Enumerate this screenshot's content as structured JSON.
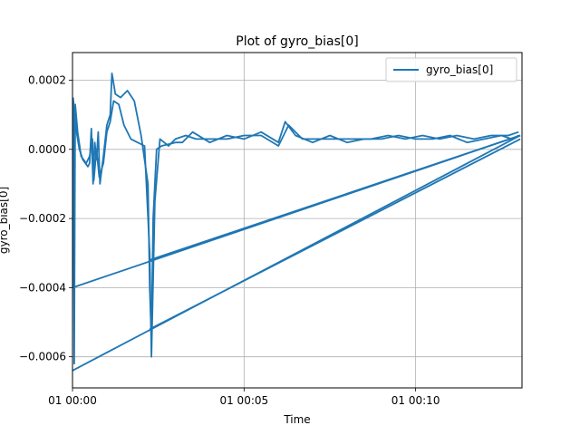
{
  "chart_data": {
    "type": "line",
    "title": "Plot of gyro_bias[0]",
    "xlabel": "Time",
    "ylabel": "gyro_bias[0]",
    "grid": true,
    "legend_position": "top-right",
    "x_unit": "minutes after 00:00",
    "x_tick_values": [
      0,
      5,
      10
    ],
    "x_tick_labels": [
      "01 00:00",
      "01 00:05",
      "01 00:10"
    ],
    "xlim": [
      0,
      13.1
    ],
    "ylim": [
      -0.00069,
      0.00028
    ],
    "y_tick_values": [
      0.0002,
      0.0,
      -0.0002,
      -0.0004,
      -0.0006
    ],
    "y_tick_labels": [
      "0.0002",
      "0.0000",
      "−0.0002",
      "−0.0004",
      "−0.0006"
    ],
    "color": "#1f77b4",
    "series": [
      {
        "name": "gyro_bias[0]",
        "segments": [
          [
            [
              0.02,
              0.00015
            ],
            [
              0.04,
              -0.0004
            ],
            [
              0.06,
              0.00012
            ],
            [
              0.1,
              6e-05
            ],
            [
              0.2,
              0.0
            ],
            [
              0.3,
              -3e-05
            ],
            [
              0.45,
              -5e-05
            ],
            [
              0.5,
              -4e-05
            ],
            [
              0.55,
              6e-05
            ],
            [
              0.6,
              -0.0001
            ],
            [
              0.65,
              2e-05
            ],
            [
              0.7,
              -3e-05
            ],
            [
              0.75,
              5e-05
            ],
            [
              0.8,
              -0.0001
            ],
            [
              0.9,
              -2e-05
            ],
            [
              1.0,
              7e-05
            ],
            [
              1.1,
              0.0001
            ],
            [
              1.15,
              0.00022
            ],
            [
              1.25,
              0.00016
            ],
            [
              1.4,
              0.00015
            ],
            [
              1.6,
              0.00017
            ],
            [
              1.8,
              0.00014
            ],
            [
              2.0,
              4e-05
            ],
            [
              2.2,
              -0.0001
            ],
            [
              2.25,
              -0.0004
            ],
            [
              2.3,
              -0.00055
            ],
            [
              2.35,
              -0.0002
            ],
            [
              2.45,
              0.0
            ],
            [
              2.6,
              1e-05
            ],
            [
              3.0,
              2e-05
            ],
            [
              3.2,
              2e-05
            ],
            [
              3.5,
              5e-05
            ],
            [
              4.0,
              2e-05
            ],
            [
              4.5,
              4e-05
            ],
            [
              5.0,
              3e-05
            ],
            [
              5.5,
              5e-05
            ],
            [
              6.0,
              2e-05
            ],
            [
              6.2,
              8e-05
            ],
            [
              6.5,
              4e-05
            ],
            [
              7.0,
              2e-05
            ],
            [
              7.5,
              4e-05
            ],
            [
              8.0,
              2e-05
            ],
            [
              8.5,
              3e-05
            ],
            [
              9.0,
              3e-05
            ],
            [
              9.5,
              4e-05
            ],
            [
              10.0,
              3e-05
            ],
            [
              10.5,
              3e-05
            ],
            [
              11.0,
              4e-05
            ],
            [
              11.5,
              2e-05
            ],
            [
              12.0,
              3e-05
            ],
            [
              12.5,
              4e-05
            ],
            [
              12.8,
              3e-05
            ],
            [
              13.0,
              4e-05
            ]
          ],
          [
            [
              0.03,
              0.00014
            ],
            [
              0.05,
              -0.00062
            ],
            [
              0.08,
              0.00013
            ],
            [
              0.15,
              5e-05
            ],
            [
              0.25,
              -2e-05
            ],
            [
              0.4,
              -4e-05
            ],
            [
              0.5,
              -2e-05
            ],
            [
              0.58,
              3e-05
            ],
            [
              0.62,
              -9e-05
            ],
            [
              0.7,
              0.0
            ],
            [
              0.78,
              -8e-05
            ],
            [
              0.9,
              -4e-05
            ],
            [
              1.0,
              5e-05
            ],
            [
              1.1,
              8e-05
            ],
            [
              1.2,
              0.00014
            ],
            [
              1.35,
              0.00013
            ],
            [
              1.5,
              7e-05
            ],
            [
              1.7,
              3e-05
            ],
            [
              1.9,
              2e-05
            ],
            [
              2.1,
              1e-05
            ],
            [
              2.25,
              -0.0003
            ],
            [
              2.3,
              -0.0006
            ],
            [
              2.4,
              -0.00015
            ],
            [
              2.55,
              3e-05
            ],
            [
              2.8,
              1e-05
            ],
            [
              3.0,
              3e-05
            ],
            [
              3.3,
              4e-05
            ],
            [
              3.6,
              3e-05
            ],
            [
              4.0,
              3e-05
            ],
            [
              4.5,
              3e-05
            ],
            [
              5.0,
              4e-05
            ],
            [
              5.5,
              4e-05
            ],
            [
              6.0,
              1e-05
            ],
            [
              6.3,
              7e-05
            ],
            [
              6.7,
              3e-05
            ],
            [
              7.2,
              3e-05
            ],
            [
              7.7,
              3e-05
            ],
            [
              8.2,
              3e-05
            ],
            [
              8.7,
              3e-05
            ],
            [
              9.2,
              4e-05
            ],
            [
              9.7,
              3e-05
            ],
            [
              10.2,
              4e-05
            ],
            [
              10.7,
              3e-05
            ],
            [
              11.2,
              4e-05
            ],
            [
              11.7,
              3e-05
            ],
            [
              12.2,
              4e-05
            ],
            [
              12.7,
              4e-05
            ],
            [
              13.0,
              5e-05
            ]
          ],
          [
            [
              0.0,
              -0.0004
            ],
            [
              13.05,
              4e-05
            ]
          ],
          [
            [
              0.0,
              -0.00064
            ],
            [
              13.05,
              4e-05
            ]
          ],
          [
            [
              2.25,
              -0.00032
            ],
            [
              13.05,
              4e-05
            ]
          ],
          [
            [
              2.25,
              -0.00052
            ],
            [
              13.05,
              3e-05
            ]
          ]
        ]
      }
    ]
  }
}
